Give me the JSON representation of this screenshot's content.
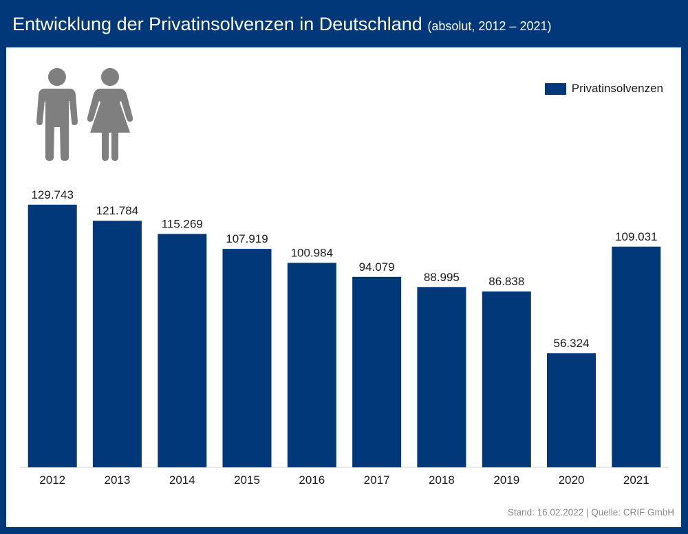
{
  "header": {
    "title": "Entwicklung der Privatinsolvenzen in Deutschland",
    "subtitle": "(absolut, 2012 – 2021)"
  },
  "icons": [
    "man-icon",
    "woman-icon"
  ],
  "footer": {
    "source": "Stand: 16.02.2022 | Quelle: CRIF GmbH"
  },
  "colors": {
    "bar": "#00387A",
    "frame": "#00387A",
    "icon": "#7f7f7f"
  },
  "chart_data": {
    "type": "bar",
    "categories": [
      "2012",
      "2013",
      "2014",
      "2015",
      "2016",
      "2017",
      "2018",
      "2019",
      "2020",
      "2021"
    ],
    "series": [
      {
        "name": "Privatinsolvenzen",
        "values": [
          129743,
          121784,
          115269,
          107919,
          100984,
          94079,
          88995,
          86838,
          56324,
          109031
        ]
      }
    ],
    "data_labels": [
      "129.743",
      "121.784",
      "115.269",
      "107.919",
      "100.984",
      "94.079",
      "88.995",
      "86.838",
      "56.324",
      "109.031"
    ],
    "ylim": [
      0,
      130000
    ],
    "grid": false,
    "legend_position": "top-right"
  }
}
